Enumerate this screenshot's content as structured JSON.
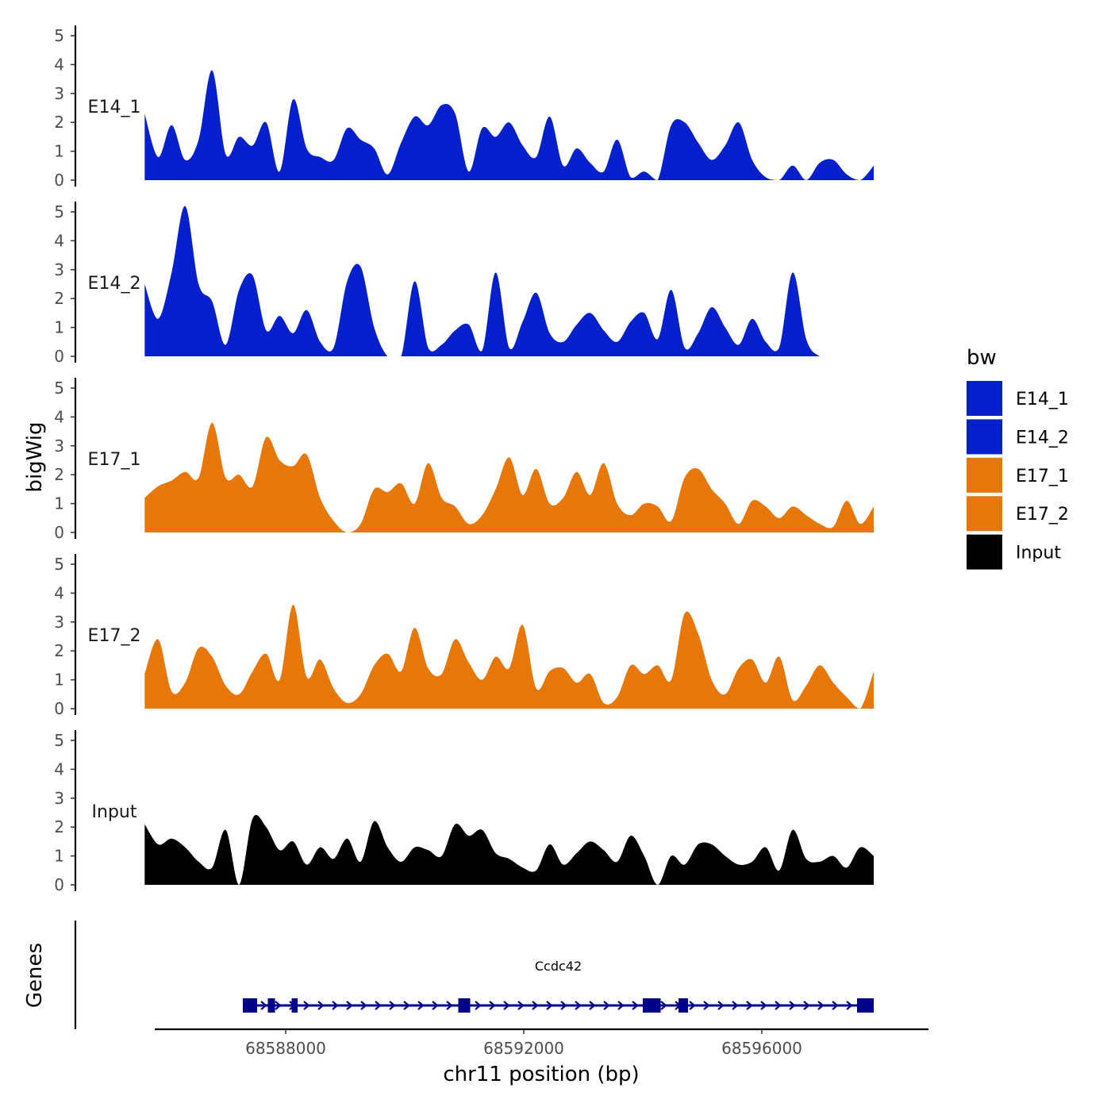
{
  "chart_data": {
    "type": "area",
    "y_title": "bigWig",
    "x_title": "chr11 position (bp)",
    "genes_title": "Genes",
    "x_range": [
      68585800,
      68598800
    ],
    "x_ticks": [
      {
        "value": 68588000,
        "label": "68588000"
      },
      {
        "value": 68592000,
        "label": "68592000"
      },
      {
        "value": 68596000,
        "label": "68596000"
      }
    ],
    "y_range": [
      0,
      5
    ],
    "y_ticks": [
      0,
      1,
      2,
      3,
      4,
      5
    ],
    "track_start": 68585630,
    "track_end": 68597880,
    "legend": {
      "title": "bw",
      "position": "right",
      "items": [
        {
          "label": "E14_1",
          "color": "#0320CC"
        },
        {
          "label": "E14_2",
          "color": "#0320CC"
        },
        {
          "label": "E17_1",
          "color": "#E8770A"
        },
        {
          "label": "E17_2",
          "color": "#E8770A"
        },
        {
          "label": "Input",
          "color": "#000000"
        }
      ]
    },
    "tracks": [
      {
        "label": "E14_1",
        "color": "#0320CC",
        "values": [
          2.3,
          0.8,
          1.9,
          0.7,
          1.4,
          3.8,
          0.9,
          1.5,
          1.2,
          2.0,
          0.3,
          2.8,
          1.1,
          0.8,
          0.7,
          1.8,
          1.4,
          1.1,
          0.2,
          1.3,
          2.2,
          1.9,
          2.6,
          2.3,
          0.3,
          1.8,
          1.5,
          2.0,
          1.2,
          0.8,
          2.2,
          0.5,
          1.1,
          0.6,
          0.3,
          1.4,
          0.1,
          0.3,
          0.0,
          1.9,
          2.0,
          1.3,
          0.7,
          1.2,
          2.0,
          0.7,
          0.1,
          0.0,
          0.5,
          0.0,
          0.6,
          0.7,
          0.2,
          0.0,
          0.5
        ]
      },
      {
        "label": "E14_2",
        "color": "#0320CC",
        "values": [
          2.5,
          1.3,
          2.9,
          5.2,
          2.5,
          1.9,
          0.4,
          2.3,
          2.8,
          0.9,
          1.4,
          0.8,
          1.6,
          0.5,
          0.3,
          2.6,
          3.1,
          1.0,
          0.0,
          0.0,
          2.6,
          0.3,
          0.4,
          0.9,
          1.1,
          0.2,
          2.9,
          0.3,
          1.2,
          2.2,
          0.8,
          0.5,
          1.1,
          1.5,
          0.9,
          0.5,
          1.2,
          1.5,
          0.6,
          2.3,
          0.3,
          0.8,
          1.7,
          1.0,
          0.4,
          1.3,
          0.5,
          0.3,
          2.9,
          0.6,
          0.0,
          0.0,
          0.0,
          0.0,
          0.0
        ]
      },
      {
        "label": "E17_1",
        "color": "#E8770A",
        "values": [
          1.2,
          1.6,
          1.8,
          2.1,
          1.9,
          3.8,
          1.9,
          2.0,
          1.6,
          3.3,
          2.5,
          2.3,
          2.7,
          1.2,
          0.4,
          0.0,
          0.3,
          1.5,
          1.4,
          1.7,
          1.0,
          2.4,
          1.2,
          0.9,
          0.3,
          0.6,
          1.5,
          2.6,
          1.3,
          2.2,
          1.0,
          1.2,
          2.1,
          1.3,
          2.4,
          1.0,
          0.6,
          1.0,
          0.9,
          0.4,
          1.9,
          2.2,
          1.5,
          1.0,
          0.3,
          1.1,
          0.9,
          0.5,
          0.9,
          0.6,
          0.3,
          0.2,
          1.1,
          0.3,
          0.9
        ]
      },
      {
        "label": "E17_2",
        "color": "#E8770A",
        "values": [
          1.2,
          2.4,
          0.6,
          0.9,
          2.1,
          1.8,
          0.8,
          0.5,
          1.3,
          1.9,
          1.0,
          3.6,
          1.1,
          1.7,
          0.7,
          0.2,
          0.5,
          1.5,
          1.9,
          1.3,
          2.8,
          1.4,
          1.2,
          2.4,
          1.6,
          1.0,
          1.8,
          1.4,
          2.9,
          0.7,
          1.3,
          1.4,
          0.9,
          1.2,
          0.2,
          0.4,
          1.5,
          1.2,
          1.5,
          1.0,
          3.3,
          2.6,
          1.0,
          0.5,
          1.4,
          1.7,
          0.9,
          1.8,
          0.3,
          0.8,
          1.5,
          0.9,
          0.4,
          0.0,
          1.3
        ]
      },
      {
        "label": "Input",
        "color": "#000000",
        "values": [
          2.1,
          1.4,
          1.6,
          1.3,
          0.8,
          0.6,
          1.9,
          0.0,
          2.3,
          2.0,
          1.2,
          1.5,
          0.7,
          1.3,
          0.9,
          1.6,
          0.8,
          2.2,
          1.3,
          0.8,
          1.3,
          1.2,
          1.0,
          2.1,
          1.7,
          1.9,
          1.1,
          0.9,
          0.6,
          0.5,
          1.4,
          0.7,
          1.1,
          1.5,
          1.2,
          0.8,
          1.7,
          1.0,
          0.0,
          1.0,
          0.7,
          1.4,
          1.4,
          1.0,
          0.7,
          0.8,
          1.3,
          0.5,
          1.9,
          0.9,
          0.8,
          1.0,
          0.6,
          1.3,
          1.0
        ]
      }
    ],
    "genes": [
      {
        "name": "Ccdc42",
        "strand": "+",
        "start": 68587280,
        "end": 68597880,
        "exons": [
          {
            "start": 68587280,
            "end": 68587520
          },
          {
            "start": 68587700,
            "end": 68587820
          },
          {
            "start": 68588100,
            "end": 68588200
          },
          {
            "start": 68590900,
            "end": 68591100
          },
          {
            "start": 68594000,
            "end": 68594300
          },
          {
            "start": 68594600,
            "end": 68594760
          },
          {
            "start": 68597600,
            "end": 68597880
          }
        ]
      }
    ]
  }
}
